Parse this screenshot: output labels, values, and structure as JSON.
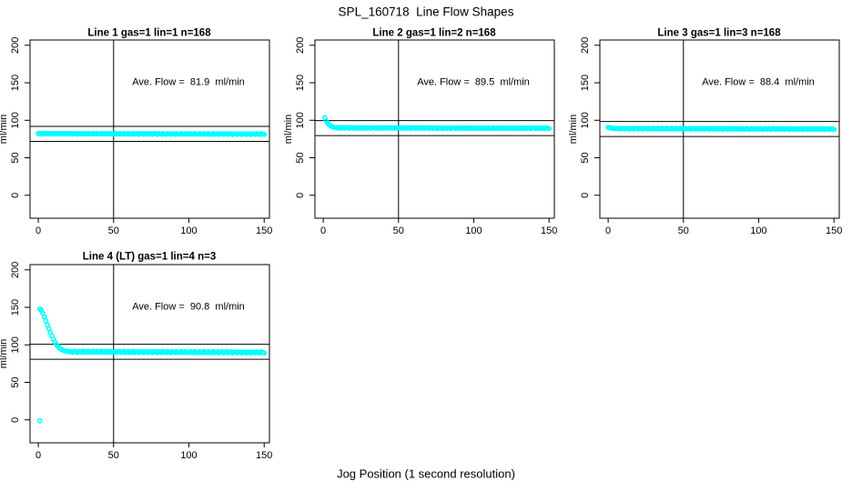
{
  "page": {
    "title": "SPL_160718  Line Flow Shapes",
    "xlabel": "Jog Position (1 second resolution)",
    "background": "#FFFFFF",
    "axis_color": "#000000",
    "point_color": "#00FFFF"
  },
  "chart_data": [
    {
      "type": "scatter",
      "title": "Line 1 gas=1 lin=1 n=168",
      "annotation": "Ave. Flow =  81.9  ml/min",
      "avg_flow_ml_min": 81.9,
      "n": 168,
      "ylabel": "ml/min",
      "x_ticks": [
        0,
        50,
        100,
        150
      ],
      "y_ticks": [
        0,
        50,
        100,
        150,
        200
      ],
      "xlim": [
        -5.5,
        153.5
      ],
      "ylim": [
        -30.6,
        207
      ],
      "vline_x": 50,
      "hlines": [
        71.9,
        91.9
      ],
      "series": {
        "outlier_points": [],
        "transient_points": [],
        "steady": {
          "x_from": 0,
          "x_to": 150,
          "y_from": 82.2,
          "y_to": 81.6,
          "jitter": 0.6
        }
      }
    },
    {
      "type": "scatter",
      "title": "Line 2 gas=1 lin=2 n=168",
      "annotation": "Ave. Flow =  89.5  ml/min",
      "avg_flow_ml_min": 89.5,
      "n": 168,
      "ylabel": "ml/min",
      "x_ticks": [
        0,
        50,
        100,
        150
      ],
      "y_ticks": [
        0,
        50,
        100,
        150,
        200
      ],
      "xlim": [
        -5.5,
        153.5
      ],
      "ylim": [
        -30.6,
        207
      ],
      "vline_x": 50,
      "hlines": [
        79.5,
        99.5
      ],
      "series": {
        "outlier_points": [],
        "transient_points": [
          [
            1,
            103.5
          ],
          [
            2,
            99
          ],
          [
            3,
            96.3
          ],
          [
            4,
            94.2
          ],
          [
            5,
            92.6
          ],
          [
            6,
            91.4
          ],
          [
            7,
            90.6
          ],
          [
            8,
            90.1
          ]
        ],
        "steady": {
          "x_from": 9,
          "x_to": 150,
          "y_from": 89.9,
          "y_to": 89.4,
          "jitter": 0.5
        }
      }
    },
    {
      "type": "scatter",
      "title": "Line 3 gas=1 lin=3 n=168",
      "annotation": "Ave. Flow =  88.4  ml/min",
      "avg_flow_ml_min": 88.4,
      "n": 168,
      "ylabel": "ml/min",
      "x_ticks": [
        0,
        50,
        100,
        150
      ],
      "y_ticks": [
        0,
        50,
        100,
        150,
        200
      ],
      "xlim": [
        -5.5,
        153.5
      ],
      "ylim": [
        -30.6,
        207
      ],
      "vline_x": 50,
      "hlines": [
        78.4,
        98.4
      ],
      "series": {
        "outlier_points": [],
        "transient_points": [
          [
            0,
            90.5
          ],
          [
            1,
            90
          ],
          [
            2,
            89.6
          ]
        ],
        "steady": {
          "x_from": 3,
          "x_to": 150,
          "y_from": 89,
          "y_to": 88.2,
          "jitter": 0.5
        }
      }
    },
    {
      "type": "scatter",
      "title": "Line 4 (LT) gas=1 lin=4 n=3",
      "annotation": "Ave. Flow =  90.8  ml/min",
      "avg_flow_ml_min": 90.8,
      "n": 3,
      "ylabel": "ml/min",
      "x_ticks": [
        0,
        50,
        100,
        150
      ],
      "y_ticks": [
        0,
        50,
        100,
        150,
        200
      ],
      "xlim": [
        -5.5,
        153.5
      ],
      "ylim": [
        -30.6,
        207
      ],
      "vline_x": 50,
      "hlines": [
        80.8,
        100.8
      ],
      "series": {
        "outlier_points": [
          [
            1,
            -1
          ]
        ],
        "transient_points": [
          [
            1,
            148
          ],
          [
            2,
            146
          ],
          [
            3,
            142
          ],
          [
            4,
            137.5
          ],
          [
            5,
            132
          ],
          [
            6,
            126.5
          ],
          [
            7,
            121.5
          ],
          [
            8,
            116.5
          ],
          [
            9,
            112
          ],
          [
            10,
            107.5
          ],
          [
            11,
            103.8
          ],
          [
            12,
            100.6
          ],
          [
            13,
            98
          ],
          [
            14,
            96
          ],
          [
            15,
            94.4
          ],
          [
            16,
            93.2
          ],
          [
            17,
            92.3
          ],
          [
            18,
            91.7
          ],
          [
            19,
            91.3
          ],
          [
            20,
            91.1
          ],
          [
            21,
            90.9
          ],
          [
            22,
            90.8
          ]
        ],
        "steady": {
          "x_from": 23,
          "x_to": 150,
          "y_from": 90.8,
          "y_to": 89.9,
          "jitter": 0.9
        }
      }
    }
  ]
}
